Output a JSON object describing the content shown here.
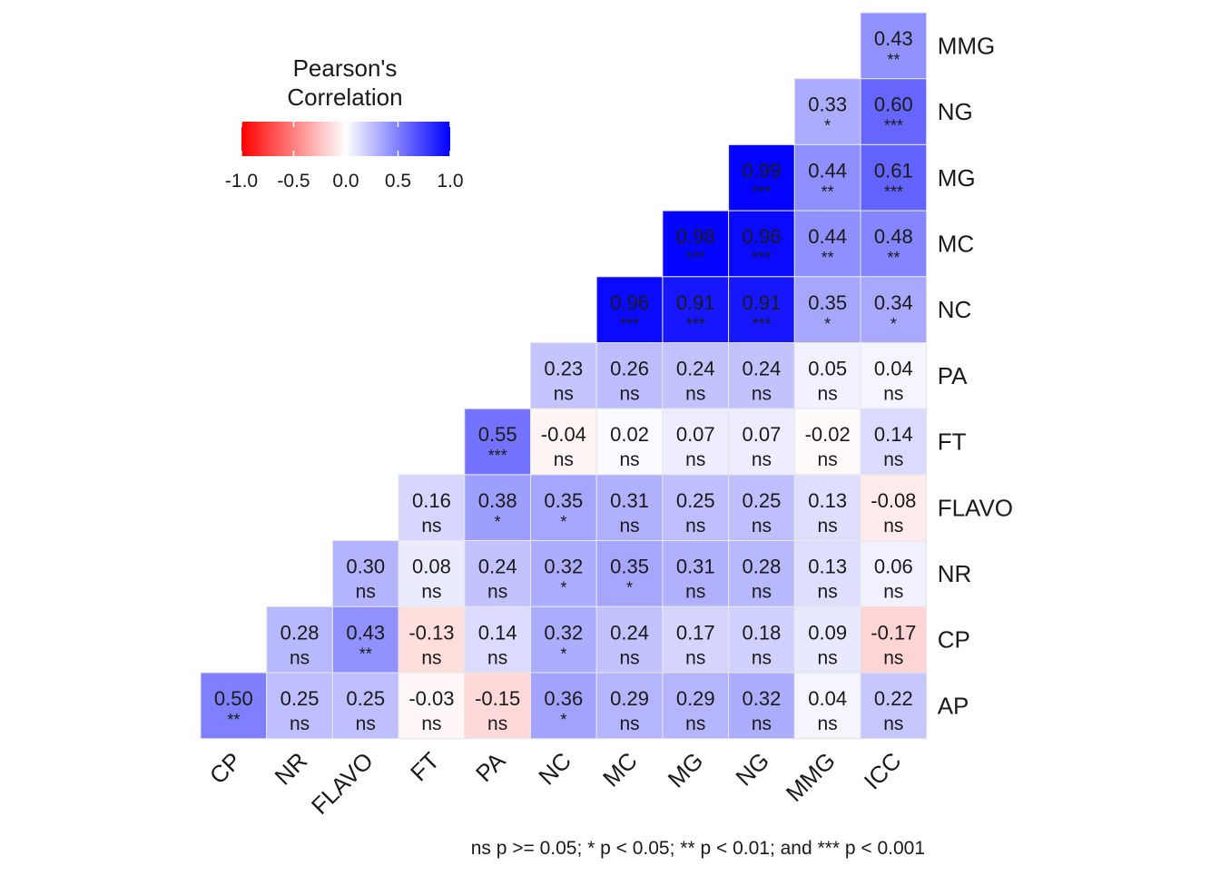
{
  "chart_data": {
    "type": "heatmap",
    "x_labels": [
      "CP",
      "NR",
      "FLAVO",
      "FT",
      "PA",
      "NC",
      "MC",
      "MG",
      "NG",
      "MMG",
      "ICC"
    ],
    "y_labels": [
      "MMG",
      "NG",
      "MG",
      "MC",
      "NC",
      "PA",
      "FT",
      "FLAVO",
      "NR",
      "CP",
      "AP"
    ],
    "rows": [
      {
        "label": "MMG",
        "values": [
          null,
          null,
          null,
          null,
          null,
          null,
          null,
          null,
          null,
          null,
          0.43
        ],
        "sig": [
          null,
          null,
          null,
          null,
          null,
          null,
          null,
          null,
          null,
          null,
          "**"
        ]
      },
      {
        "label": "NG",
        "values": [
          null,
          null,
          null,
          null,
          null,
          null,
          null,
          null,
          null,
          0.33,
          0.6
        ],
        "sig": [
          null,
          null,
          null,
          null,
          null,
          null,
          null,
          null,
          null,
          "*",
          "***"
        ]
      },
      {
        "label": "MG",
        "values": [
          null,
          null,
          null,
          null,
          null,
          null,
          null,
          null,
          0.99,
          0.44,
          0.61
        ],
        "sig": [
          null,
          null,
          null,
          null,
          null,
          null,
          null,
          null,
          "***",
          "**",
          "***"
        ]
      },
      {
        "label": "MC",
        "values": [
          null,
          null,
          null,
          null,
          null,
          null,
          null,
          0.98,
          0.96,
          0.44,
          0.48
        ],
        "sig": [
          null,
          null,
          null,
          null,
          null,
          null,
          null,
          "***",
          "***",
          "**",
          "**"
        ]
      },
      {
        "label": "NC",
        "values": [
          null,
          null,
          null,
          null,
          null,
          null,
          0.96,
          0.91,
          0.91,
          0.35,
          0.34
        ],
        "sig": [
          null,
          null,
          null,
          null,
          null,
          null,
          "***",
          "***",
          "***",
          "*",
          "*"
        ]
      },
      {
        "label": "PA",
        "values": [
          null,
          null,
          null,
          null,
          null,
          0.23,
          0.26,
          0.24,
          0.24,
          0.05,
          0.04
        ],
        "sig": [
          null,
          null,
          null,
          null,
          null,
          "ns",
          "ns",
          "ns",
          "ns",
          "ns",
          "ns"
        ]
      },
      {
        "label": "FT",
        "values": [
          null,
          null,
          null,
          null,
          0.55,
          -0.04,
          0.02,
          0.07,
          0.07,
          -0.02,
          0.14
        ],
        "sig": [
          null,
          null,
          null,
          null,
          "***",
          "ns",
          "ns",
          "ns",
          "ns",
          "ns",
          "ns"
        ]
      },
      {
        "label": "FLAVO",
        "values": [
          null,
          null,
          null,
          0.16,
          0.38,
          0.35,
          0.31,
          0.25,
          0.25,
          0.13,
          -0.08
        ],
        "sig": [
          null,
          null,
          null,
          "ns",
          "*",
          "*",
          "ns",
          "ns",
          "ns",
          "ns",
          "ns"
        ]
      },
      {
        "label": "NR",
        "values": [
          null,
          null,
          0.3,
          0.08,
          0.24,
          0.32,
          0.35,
          0.31,
          0.28,
          0.13,
          0.06
        ],
        "sig": [
          null,
          null,
          "ns",
          "ns",
          "ns",
          "*",
          "*",
          "ns",
          "ns",
          "ns",
          "ns"
        ]
      },
      {
        "label": "CP",
        "values": [
          null,
          0.28,
          0.43,
          -0.13,
          0.14,
          0.32,
          0.24,
          0.17,
          0.18,
          0.09,
          -0.17
        ],
        "sig": [
          null,
          "ns",
          "**",
          "ns",
          "ns",
          "*",
          "ns",
          "ns",
          "ns",
          "ns",
          "ns"
        ]
      },
      {
        "label": "AP",
        "values": [
          0.5,
          0.25,
          0.25,
          -0.03,
          -0.15,
          0.36,
          0.29,
          0.29,
          0.32,
          0.04,
          0.22
        ],
        "sig": [
          "**",
          "ns",
          "ns",
          "ns",
          "ns",
          "*",
          "ns",
          "ns",
          "ns",
          "ns",
          "ns"
        ]
      }
    ],
    "legend": {
      "title_lines": [
        "Pearson's",
        "Correlation"
      ],
      "ticks": [
        -1.0,
        -0.5,
        0.0,
        0.5,
        1.0
      ],
      "tick_labels": [
        "-1.0",
        "-0.5",
        "0.0",
        "0.5",
        "1.0"
      ],
      "range": [
        -1,
        1
      ],
      "placement": "top-left"
    },
    "colors": {
      "negative": "#ff0000",
      "zero": "#ffffff",
      "positive": "#0000ff"
    },
    "footnote": "ns p >= 0.05; * p < 0.05; ** p < 0.01; and *** p < 0.001"
  }
}
